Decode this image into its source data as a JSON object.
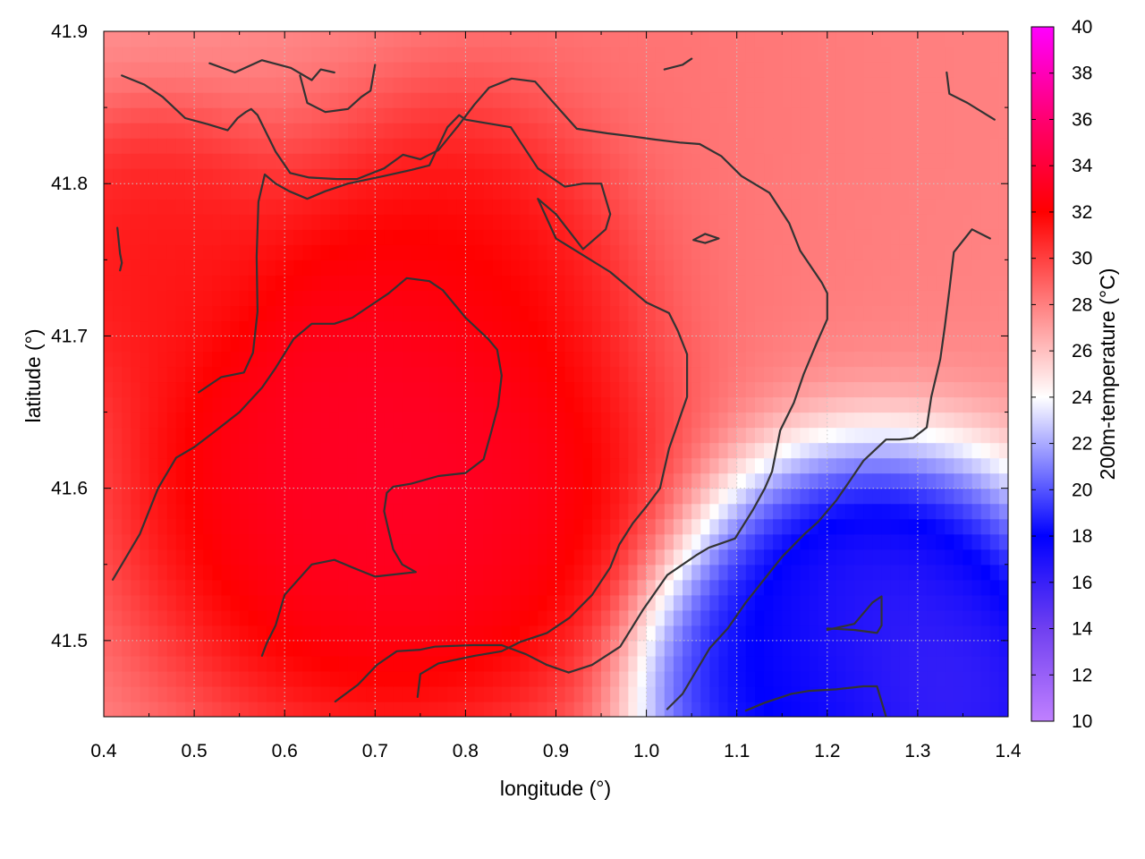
{
  "chart_data": {
    "type": "heatmap",
    "title": "",
    "xlabel": "longitude (°)",
    "ylabel": "latitude (°)",
    "colorbar_label": "200m-temperature (°C)",
    "xlim": [
      0.4,
      1.4
    ],
    "ylim": [
      41.45,
      41.9
    ],
    "x_ticks": [
      "0.4",
      "0.5",
      "0.6",
      "0.7",
      "0.8",
      "0.9",
      "1.0",
      "1.1",
      "1.2",
      "1.3",
      "1.4"
    ],
    "y_ticks": [
      "41.5",
      "41.6",
      "41.7",
      "41.8",
      "41.9"
    ],
    "colorbar_range": [
      10,
      40
    ],
    "colorbar_ticks": [
      "10",
      "12",
      "14",
      "16",
      "18",
      "20",
      "22",
      "24",
      "26",
      "28",
      "30",
      "32",
      "34",
      "36",
      "38",
      "40"
    ],
    "colormap": [
      {
        "value": 10,
        "color": "#c080ff"
      },
      {
        "value": 14,
        "color": "#7040f0"
      },
      {
        "value": 18,
        "color": "#0000ff"
      },
      {
        "value": 24,
        "color": "#ffffff"
      },
      {
        "value": 32,
        "color": "#ff0000"
      },
      {
        "value": 36,
        "color": "#ff0070"
      },
      {
        "value": 40,
        "color": "#ff00ff"
      }
    ],
    "grid": true,
    "contour_levels": [
      24,
      28,
      32
    ],
    "field_centers": [
      {
        "lon": 0.72,
        "lat": 41.62,
        "temp": 34.0,
        "spread": 0.2
      },
      {
        "lon": 0.85,
        "lat": 41.76,
        "temp": 32.5,
        "spread": 0.12
      },
      {
        "lon": 0.45,
        "lat": 41.75,
        "temp": 31.5,
        "spread": 0.1
      },
      {
        "lon": 1.05,
        "lat": 41.85,
        "temp": 28.5,
        "spread": 0.2
      },
      {
        "lon": 1.3,
        "lat": 41.85,
        "temp": 28.0,
        "spread": 0.2
      },
      {
        "lon": 1.25,
        "lat": 41.5,
        "temp": 15.0,
        "spread": 0.14
      },
      {
        "lon": 1.35,
        "lat": 41.46,
        "temp": 15.5,
        "spread": 0.08
      },
      {
        "lon": 1.15,
        "lat": 41.47,
        "temp": 18.0,
        "spread": 0.1
      }
    ],
    "background_temp": 27.5,
    "contours": [
      {
        "level": 28,
        "points": [
          [
            0.42,
            41.871
          ],
          [
            0.445,
            41.865
          ],
          [
            0.465,
            41.857
          ],
          [
            0.49,
            41.843
          ],
          [
            0.515,
            41.839
          ],
          [
            0.537,
            41.835
          ],
          [
            0.548,
            41.843
          ],
          [
            0.557,
            41.847
          ],
          [
            0.563,
            41.849
          ],
          [
            0.57,
            41.845
          ],
          [
            0.59,
            41.821
          ],
          [
            0.606,
            41.807
          ],
          [
            0.627,
            41.804
          ],
          [
            0.658,
            41.803
          ],
          [
            0.68,
            41.803
          ],
          [
            0.71,
            41.81
          ],
          [
            0.731,
            41.819
          ],
          [
            0.75,
            41.816
          ],
          [
            0.77,
            41.822
          ],
          [
            0.792,
            41.838
          ],
          [
            0.81,
            41.852
          ],
          [
            0.826,
            41.863
          ],
          [
            0.851,
            41.869
          ],
          [
            0.877,
            41.867
          ],
          [
            0.896,
            41.854
          ],
          [
            0.923,
            41.836
          ],
          [
            0.957,
            41.833
          ],
          [
            0.985,
            41.831
          ],
          [
            1.009,
            41.829
          ],
          [
            1.037,
            41.827
          ],
          [
            1.059,
            41.826
          ],
          [
            1.083,
            41.818
          ],
          [
            1.105,
            41.805
          ],
          [
            1.136,
            41.794
          ],
          [
            1.158,
            41.774
          ],
          [
            1.17,
            41.756
          ],
          [
            1.194,
            41.735
          ],
          [
            1.2,
            41.728
          ],
          [
            1.2,
            41.711
          ],
          [
            1.188,
            41.695
          ],
          [
            1.174,
            41.675
          ],
          [
            1.163,
            41.656
          ],
          [
            1.148,
            41.638
          ],
          [
            1.139,
            41.611
          ],
          [
            1.131,
            41.6
          ],
          [
            1.118,
            41.586
          ],
          [
            1.098,
            41.567
          ],
          [
            1.069,
            41.561
          ],
          [
            1.055,
            41.556
          ],
          [
            1.023,
            41.543
          ],
          [
            0.996,
            41.52
          ],
          [
            0.971,
            41.496
          ],
          [
            0.94,
            41.484
          ],
          [
            0.914,
            41.479
          ],
          [
            0.89,
            41.484
          ],
          [
            0.867,
            41.491
          ],
          [
            0.84,
            41.497
          ],
          [
            0.808,
            41.497
          ],
          [
            0.766,
            41.496
          ],
          [
            0.75,
            41.494
          ],
          [
            0.724,
            41.493
          ],
          [
            0.702,
            41.484
          ],
          [
            0.681,
            41.471
          ],
          [
            0.656,
            41.46
          ]
        ]
      },
      {
        "level": 28,
        "points": [
          [
            0.41,
            41.54
          ],
          [
            0.42,
            41.55
          ],
          [
            0.44,
            41.57
          ],
          [
            0.46,
            41.6
          ],
          [
            0.48,
            41.62
          ],
          [
            0.5,
            41.627
          ],
          [
            0.52,
            41.636
          ],
          [
            0.55,
            41.65
          ],
          [
            0.575,
            41.666
          ],
          [
            0.59,
            41.679
          ],
          [
            0.61,
            41.698
          ],
          [
            0.63,
            41.708
          ],
          [
            0.655,
            41.708
          ],
          [
            0.675,
            41.712
          ],
          [
            0.7,
            41.722
          ],
          [
            0.715,
            41.728
          ],
          [
            0.735,
            41.738
          ],
          [
            0.76,
            41.736
          ],
          [
            0.775,
            41.73
          ],
          [
            0.8,
            41.712
          ],
          [
            0.825,
            41.698
          ],
          [
            0.835,
            41.691
          ],
          [
            0.84,
            41.674
          ],
          [
            0.836,
            41.654
          ],
          [
            0.828,
            41.636
          ],
          [
            0.82,
            41.619
          ],
          [
            0.8,
            41.61
          ],
          [
            0.77,
            41.608
          ],
          [
            0.74,
            41.603
          ],
          [
            0.72,
            41.601
          ],
          [
            0.713,
            41.597
          ],
          [
            0.71,
            41.585
          ],
          [
            0.715,
            41.572
          ],
          [
            0.72,
            41.56
          ],
          [
            0.73,
            41.55
          ],
          [
            0.745,
            41.545
          ],
          [
            0.7,
            41.542
          ],
          [
            0.675,
            41.548
          ],
          [
            0.655,
            41.553
          ],
          [
            0.63,
            41.55
          ],
          [
            0.6,
            41.53
          ],
          [
            0.59,
            41.51
          ],
          [
            0.58,
            41.498
          ],
          [
            0.575,
            41.49
          ]
        ]
      },
      {
        "level": 28,
        "points": [
          [
            0.505,
            41.663
          ],
          [
            0.53,
            41.673
          ],
          [
            0.555,
            41.676
          ],
          [
            0.565,
            41.689
          ],
          [
            0.57,
            41.716
          ],
          [
            0.569,
            41.752
          ],
          [
            0.571,
            41.788
          ],
          [
            0.578,
            41.806
          ],
          [
            0.59,
            41.8
          ],
          [
            0.605,
            41.795
          ],
          [
            0.625,
            41.79
          ],
          [
            0.645,
            41.795
          ],
          [
            0.67,
            41.8
          ],
          [
            0.71,
            41.805
          ],
          [
            0.74,
            41.809
          ],
          [
            0.76,
            41.812
          ],
          [
            0.78,
            41.837
          ],
          [
            0.793,
            41.845
          ],
          [
            0.8,
            41.842
          ],
          [
            0.85,
            41.837
          ],
          [
            0.88,
            41.81
          ],
          [
            0.91,
            41.798
          ],
          [
            0.93,
            41.8
          ],
          [
            0.95,
            41.8
          ],
          [
            0.96,
            41.78
          ],
          [
            0.955,
            41.77
          ],
          [
            0.93,
            41.757
          ],
          [
            0.9,
            41.78
          ],
          [
            0.88,
            41.79
          ],
          [
            0.9,
            41.764
          ],
          [
            0.93,
            41.753
          ],
          [
            0.96,
            41.742
          ],
          [
            0.98,
            41.732
          ],
          [
            1.0,
            41.722
          ],
          [
            1.025,
            41.715
          ],
          [
            1.035,
            41.703
          ],
          [
            1.045,
            41.688
          ],
          [
            1.045,
            41.66
          ],
          [
            1.035,
            41.643
          ],
          [
            1.025,
            41.626
          ],
          [
            1.015,
            41.6
          ],
          [
            1.0,
            41.588
          ],
          [
            0.985,
            41.577
          ],
          [
            0.97,
            41.563
          ],
          [
            0.96,
            41.548
          ],
          [
            0.94,
            41.53
          ],
          [
            0.915,
            41.515
          ],
          [
            0.89,
            41.505
          ],
          [
            0.86,
            41.499
          ],
          [
            0.84,
            41.493
          ],
          [
            0.81,
            41.49
          ],
          [
            0.77,
            41.485
          ],
          [
            0.75,
            41.478
          ],
          [
            0.747,
            41.463
          ]
        ]
      },
      {
        "level": 24,
        "points": [
          [
            1.023,
            41.455
          ],
          [
            1.04,
            41.465
          ],
          [
            1.07,
            41.495
          ],
          [
            1.09,
            41.508
          ],
          [
            1.11,
            41.525
          ],
          [
            1.13,
            41.54
          ],
          [
            1.15,
            41.555
          ],
          [
            1.175,
            41.57
          ],
          [
            1.19,
            41.578
          ],
          [
            1.21,
            41.592
          ],
          [
            1.225,
            41.605
          ],
          [
            1.24,
            41.618
          ],
          [
            1.265,
            41.632
          ],
          [
            1.28,
            41.632
          ],
          [
            1.295,
            41.633
          ],
          [
            1.31,
            41.64
          ],
          [
            1.315,
            41.66
          ],
          [
            1.325,
            41.685
          ],
          [
            1.33,
            41.706
          ],
          [
            1.335,
            41.73
          ],
          [
            1.34,
            41.755
          ],
          [
            1.36,
            41.77
          ],
          [
            1.38,
            41.764
          ]
        ]
      },
      {
        "level": 24,
        "points": [
          [
            1.2,
            41.507
          ],
          [
            1.23,
            41.511
          ],
          [
            1.25,
            41.525
          ],
          [
            1.26,
            41.529
          ],
          [
            1.26,
            41.51
          ],
          [
            1.255,
            41.505
          ],
          [
            1.23,
            41.507
          ],
          [
            1.2,
            41.508
          ]
        ]
      },
      {
        "level": 24,
        "points": [
          [
            1.11,
            41.454
          ],
          [
            1.13,
            41.459
          ],
          [
            1.16,
            41.465
          ],
          [
            1.18,
            41.467
          ],
          [
            1.21,
            41.468
          ],
          [
            1.24,
            41.47
          ],
          [
            1.255,
            41.47
          ],
          [
            1.265,
            41.45
          ]
        ]
      },
      {
        "level": 28,
        "points": [
          [
            1.332,
            41.873
          ],
          [
            1.335,
            41.859
          ],
          [
            1.355,
            41.853
          ],
          [
            1.385,
            41.842
          ]
        ]
      },
      {
        "level": 28,
        "points": [
          [
            0.517,
            41.879
          ],
          [
            0.545,
            41.873
          ],
          [
            0.575,
            41.881
          ],
          [
            0.607,
            41.876
          ],
          [
            0.63,
            41.868
          ],
          [
            0.64,
            41.875
          ],
          [
            0.655,
            41.873
          ]
        ]
      },
      {
        "level": 28,
        "points": [
          [
            0.617,
            41.871
          ],
          [
            0.625,
            41.853
          ],
          [
            0.645,
            41.847
          ],
          [
            0.67,
            41.849
          ],
          [
            0.685,
            41.857
          ],
          [
            0.695,
            41.861
          ],
          [
            0.7,
            41.878
          ]
        ]
      },
      {
        "level": 28,
        "points": [
          [
            1.02,
            41.875
          ],
          [
            1.04,
            41.878
          ],
          [
            1.05,
            41.882
          ]
        ]
      },
      {
        "level": 32,
        "points": [
          [
            1.052,
            41.763
          ],
          [
            1.065,
            41.767
          ],
          [
            1.08,
            41.764
          ],
          [
            1.065,
            41.761
          ],
          [
            1.052,
            41.763
          ]
        ]
      },
      {
        "level": 32,
        "points": [
          [
            0.415,
            41.771
          ],
          [
            0.418,
            41.754
          ],
          [
            0.42,
            41.748
          ],
          [
            0.418,
            41.743
          ]
        ]
      }
    ]
  }
}
